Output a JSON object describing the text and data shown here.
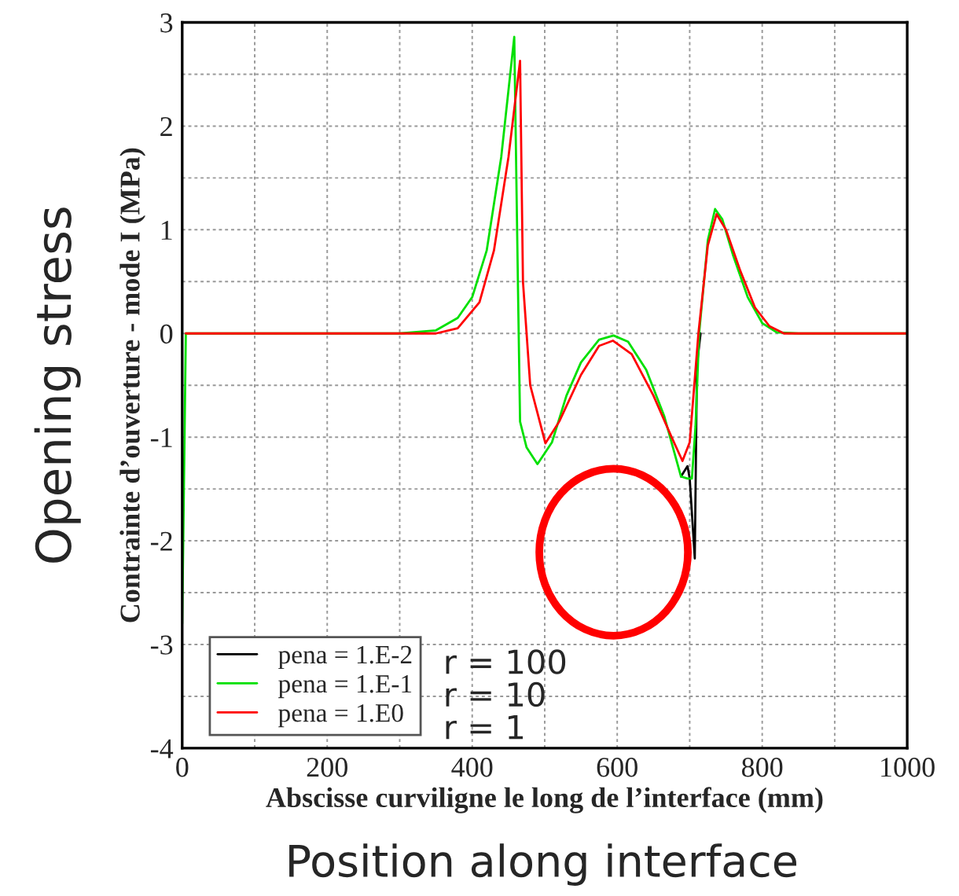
{
  "chart_data": {
    "type": "line",
    "xlabel": "Abscisse curviligne le long de l’interface (mm)",
    "ylabel": "Contrainte d’ouverture - mode I (MPa)",
    "xlim": [
      0,
      1000
    ],
    "ylim": [
      -4,
      3
    ],
    "xticks": [
      0,
      {
        "value": 100,
        "label": null
      },
      200,
      {
        "value": 300,
        "label": null
      },
      400,
      {
        "value": 500,
        "label": null
      },
      600,
      {
        "value": 700,
        "label": null
      },
      800,
      {
        "value": 900,
        "label": null
      },
      1000
    ],
    "yticks": [
      -4,
      {
        "value": -3.5,
        "label": null
      },
      -3,
      {
        "value": -2.5,
        "label": null
      },
      -2,
      {
        "value": -1.5,
        "label": null
      },
      -1,
      {
        "value": -0.5,
        "label": null
      },
      0,
      {
        "value": 0.5,
        "label": null
      },
      1,
      {
        "value": 1.5,
        "label": null
      },
      2,
      {
        "value": 2.5,
        "label": null
      },
      3
    ],
    "grid": true,
    "legend": "bottom left",
    "line_style": "solid",
    "series": [
      {
        "name": "pena = 1.E-2",
        "color": "#000000",
        "x": [
          688,
          697,
          700,
          707,
          710,
          715
        ],
        "values": [
          -1.38,
          -1.28,
          -1.4,
          -2.17,
          -0.3,
          0
        ]
      },
      {
        "name": "pena = 1.E-1",
        "color": "#00e000",
        "x": [
          0,
          5,
          300,
          350,
          380,
          400,
          420,
          440,
          458,
          463,
          466,
          475,
          490,
          510,
          530,
          550,
          575,
          595,
          615,
          640,
          665,
          688,
          697,
          703,
          708,
          713,
          725,
          735,
          745,
          760,
          780,
          800,
          820,
          850,
          1000
        ],
        "values": [
          -2.8,
          0,
          0,
          0.03,
          0.15,
          0.35,
          0.8,
          1.7,
          2.86,
          0.5,
          -0.85,
          -1.1,
          -1.26,
          -1.05,
          -0.6,
          -0.28,
          -0.06,
          -0.02,
          -0.08,
          -0.35,
          -0.8,
          -1.38,
          -1.4,
          -1.4,
          -0.9,
          0,
          0.9,
          1.2,
          1.1,
          0.75,
          0.35,
          0.1,
          0.01,
          0,
          0
        ]
      },
      {
        "name": "pena = 1.E0",
        "color": "#ff0000",
        "x": [
          5,
          350,
          380,
          410,
          430,
          450,
          466,
          470,
          480,
          501,
          520,
          550,
          575,
          594,
          620,
          650,
          675,
          690,
          700,
          712,
          725,
          737,
          750,
          770,
          790,
          810,
          830,
          1000
        ],
        "values": [
          0,
          0,
          0.05,
          0.3,
          0.8,
          1.7,
          2.63,
          0.5,
          -0.5,
          -1.06,
          -0.85,
          -0.4,
          -0.12,
          -0.07,
          -0.2,
          -0.6,
          -1.0,
          -1.23,
          -1.05,
          0,
          0.85,
          1.15,
          1.0,
          0.6,
          0.25,
          0.07,
          0,
          0
        ]
      }
    ],
    "annotations": [
      "r = 100",
      "r = 10",
      "r = 1",
      "Opening stress",
      "Position along interface"
    ]
  }
}
